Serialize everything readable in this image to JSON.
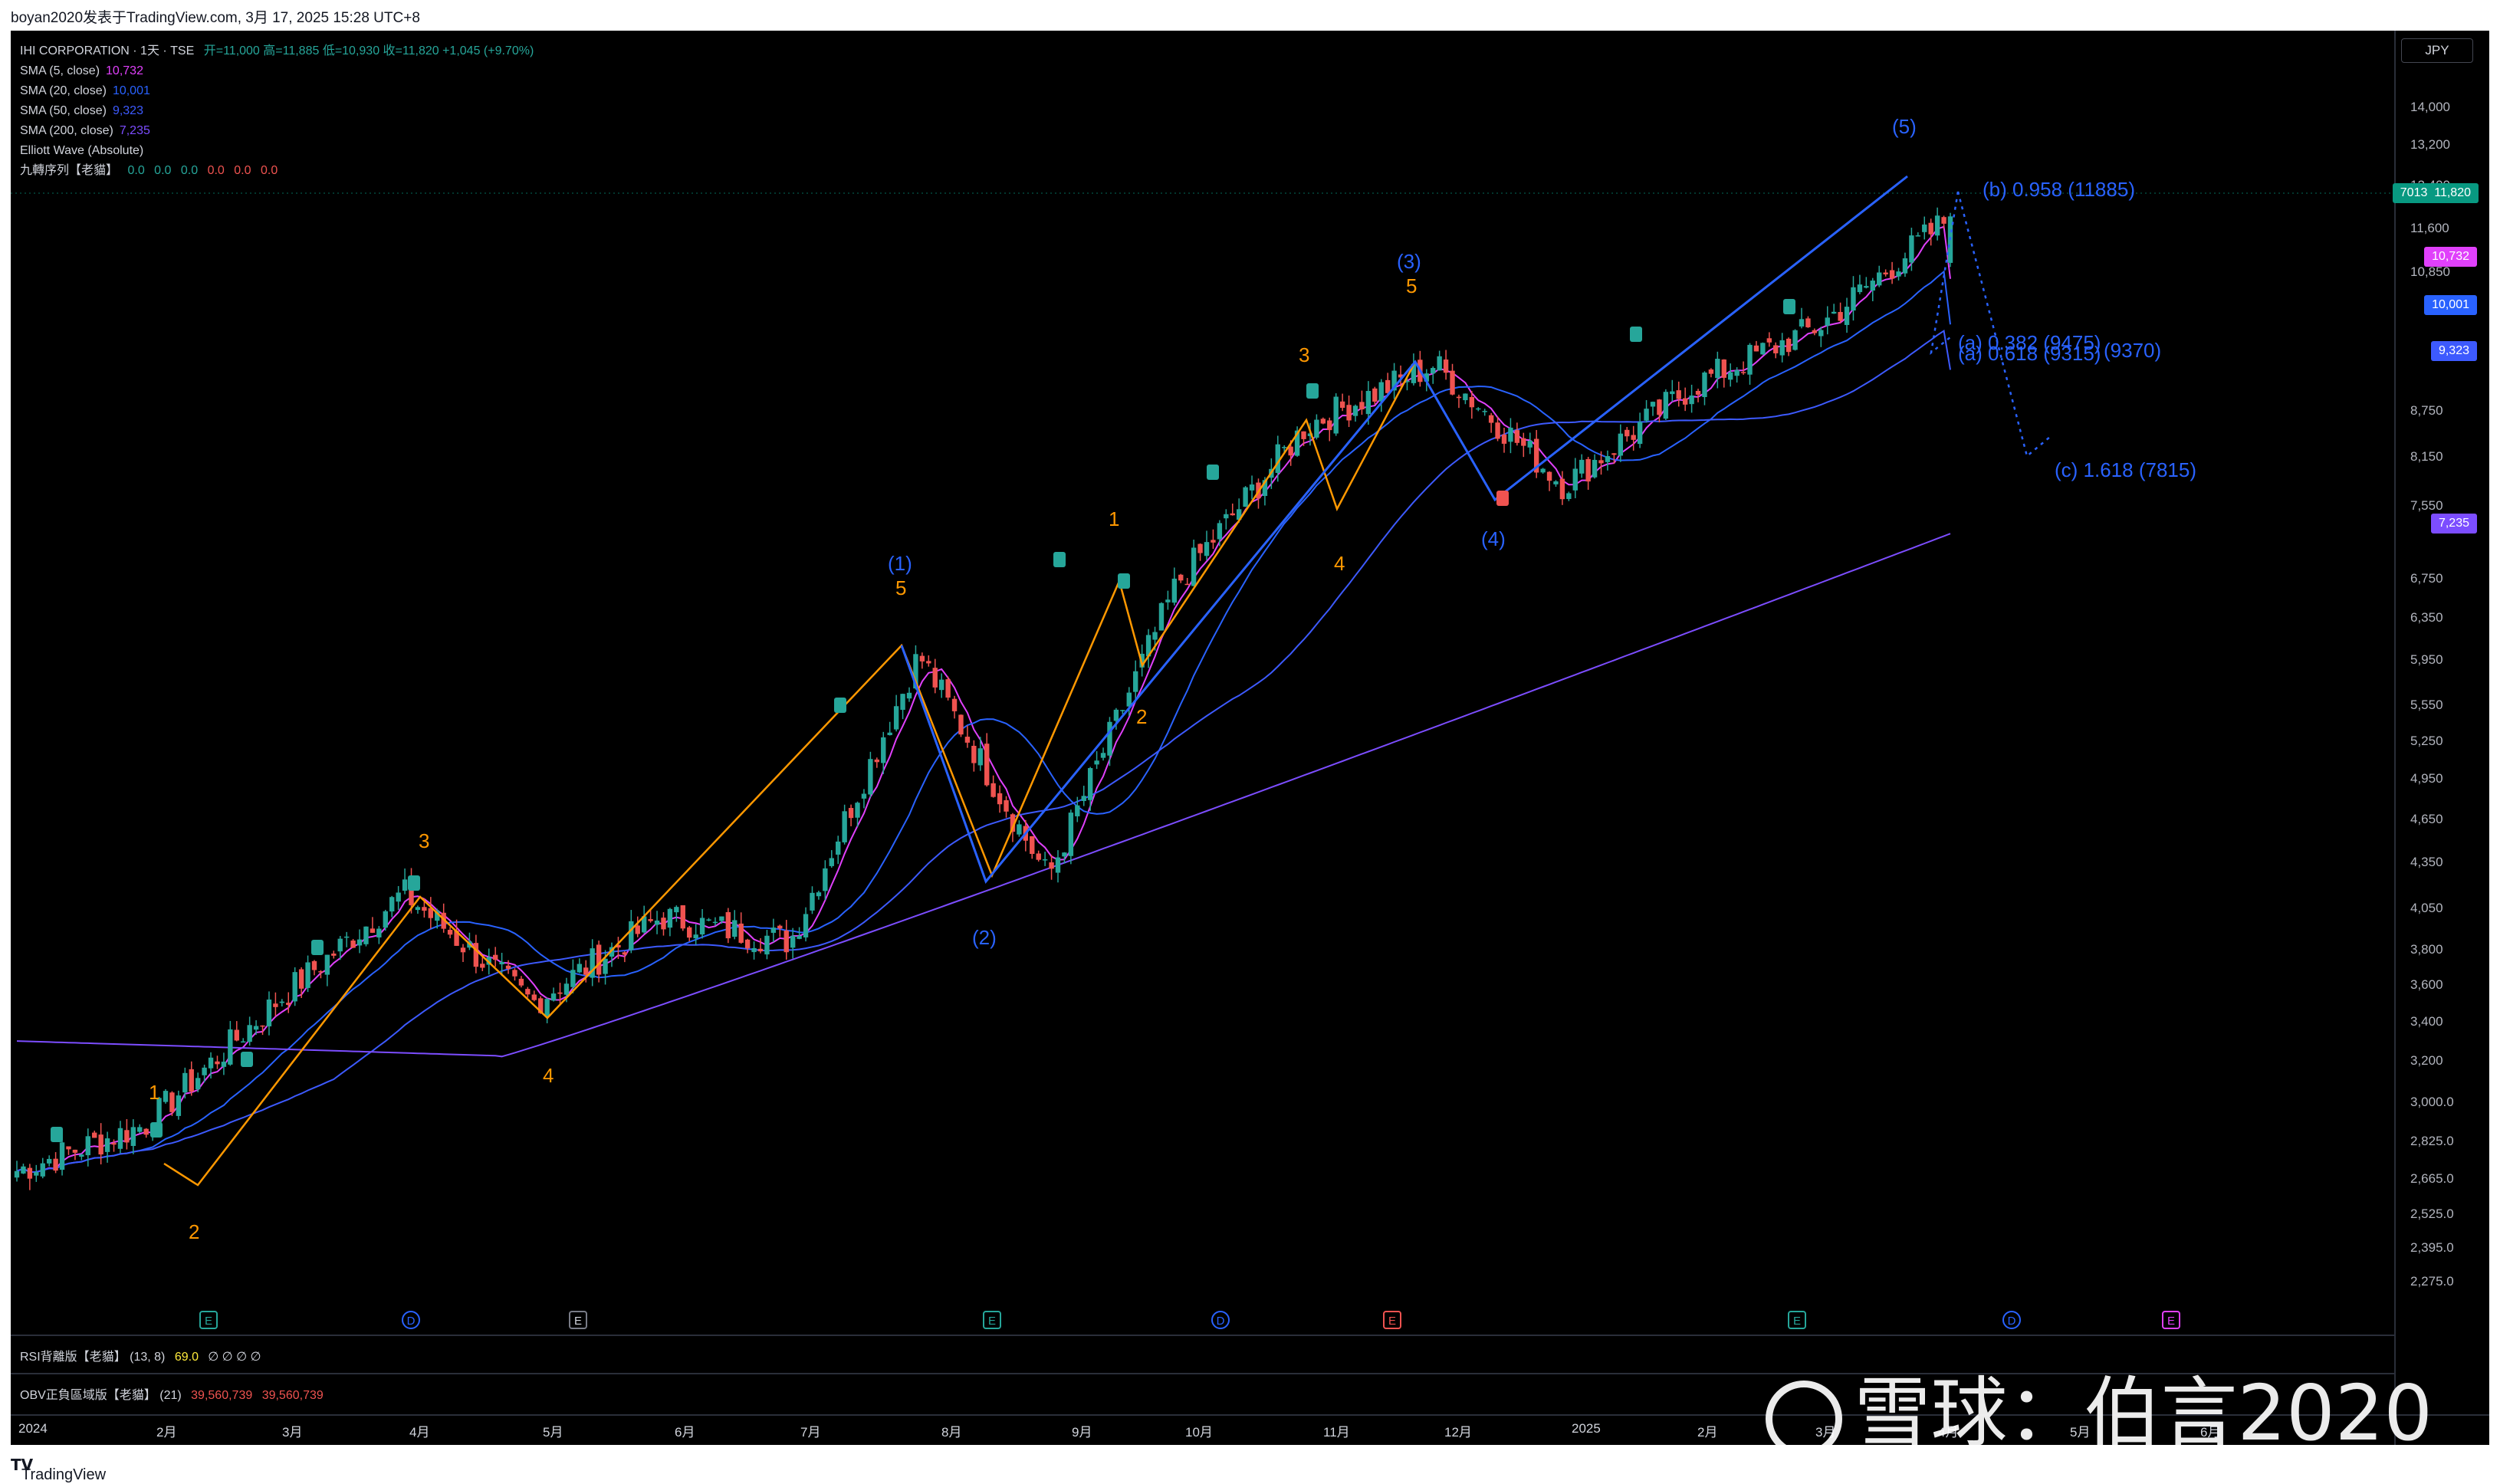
{
  "header": {
    "text": "boyan2020发表于TradingView.com,   3月 17, 2025 15:28 UTC+8"
  },
  "legend": {
    "symbol": "IHI CORPORATION · 1天 · TSE",
    "ohlc": "开=11,000  高=11,885  低=10,930  收=11,820  +1,045 (+9.70%)",
    "rows": [
      {
        "label": "SMA (5, close)",
        "value": "10,732",
        "color": "#e040fb"
      },
      {
        "label": "SMA (20, close)",
        "value": "10,001",
        "color": "#2962ff"
      },
      {
        "label": "SMA (50, close)",
        "value": "9,323",
        "color": "#3d5afe"
      },
      {
        "label": "SMA (200, close)",
        "value": "7,235",
        "color": "#7c4dff"
      },
      {
        "label": "Elliott Wave (Absolute)",
        "value": "",
        "color": "#d1d4dc"
      }
    ],
    "td_label": "九轉序列【老貓】",
    "td_values": [
      "0.0",
      "0.0",
      "0.0",
      "0.0",
      "0.0",
      "0.0"
    ]
  },
  "axis": {
    "currency": "JPY",
    "prices": [
      "14,000",
      "13,200",
      "12,400",
      "11,600",
      "10,850",
      "8,750",
      "8,150",
      "7,550",
      "6,750",
      "6,350",
      "5,950",
      "5,550",
      "5,250",
      "4,950",
      "4,650",
      "4,350",
      "4,050",
      "3,800",
      "3,600",
      "3,400",
      "3,200",
      "3,000.0",
      "2,825.0",
      "2,665.0",
      "2,525.0",
      "2,395.0",
      "2,275.0"
    ],
    "months": [
      "2024",
      "2月",
      "3月",
      "4月",
      "5月",
      "6月",
      "7月",
      "8月",
      "9月",
      "10月",
      "11月",
      "12月",
      "2025",
      "2月",
      "3月",
      "4月",
      "5月",
      "6月"
    ],
    "tags": [
      {
        "text": "7013",
        "value": "11,820",
        "color": "#089981"
      },
      {
        "text": "",
        "value": "10,732",
        "color": "#e040fb"
      },
      {
        "text": "",
        "value": "10,001",
        "color": "#2962ff"
      },
      {
        "text": "",
        "value": "9,323",
        "color": "#3d5afe"
      },
      {
        "text": "",
        "value": "7,235",
        "color": "#7c4dff"
      }
    ]
  },
  "waves": {
    "minor": [
      "1",
      "2",
      "3",
      "4",
      "5",
      "1",
      "2",
      "3",
      "4",
      "5"
    ],
    "major": [
      "(1)",
      "(2)",
      "(3)",
      "(4)",
      "(5)"
    ]
  },
  "fib": {
    "b": "(b) 0.958 (11885)",
    "a1": "(a) 0.382 (9475)",
    "a2": "(a) 0.618 (9315)",
    "a3": "(9370)",
    "c": "(c) 1.618 (7815)"
  },
  "events": [
    "E",
    "D",
    "E",
    "E",
    "D",
    "E",
    "E",
    "D",
    "E"
  ],
  "panes": {
    "rsi": {
      "label": "RSI背離版【老貓】 (13, 8)",
      "value": "69.0",
      "rest": "∅ ∅ ∅ ∅"
    },
    "obv": {
      "label": "OBV正負區域版【老貓】 (21)",
      "v1": "39,560,739",
      "v2": "39,560,739"
    }
  },
  "footer": {
    "brand": "TradingView"
  },
  "watermark": "雪球：伯言2020",
  "chart_data": {
    "type": "candlestick",
    "title": "IHI CORPORATION · 1天 · TSE",
    "ylabel": "JPY",
    "y_scale": "log",
    "ylim": [
      2200,
      14500
    ],
    "x": [
      "2024-01",
      "2024-02",
      "2024-03",
      "2024-04",
      "2024-05",
      "2024-06",
      "2024-07",
      "2024-08",
      "2024-09",
      "2024-10",
      "2024-11",
      "2024-12",
      "2025-01",
      "2025-02",
      "2025-03"
    ],
    "close_path": [
      2700,
      2900,
      3500,
      4150,
      3500,
      4000,
      3850,
      6000,
      4250,
      6700,
      8550,
      9400,
      7800,
      9100,
      10000,
      11820
    ],
    "last": {
      "open": 11000,
      "high": 11885,
      "low": 10930,
      "close": 11820,
      "change": 1045,
      "change_pct": 9.7
    },
    "sma": [
      {
        "name": "SMA (5, close)",
        "last": 10732
      },
      {
        "name": "SMA (20, close)",
        "last": 10001
      },
      {
        "name": "SMA (50, close)",
        "last": 9323
      },
      {
        "name": "SMA (200, close)",
        "last": 7235
      }
    ],
    "elliott_major": [
      {
        "label": "(1)",
        "price": 6000
      },
      {
        "label": "(2)",
        "price": 4250
      },
      {
        "label": "(3)",
        "price": 9400
      },
      {
        "label": "(4)",
        "price": 7700
      },
      {
        "label": "(5)",
        "price": 12000
      }
    ],
    "fib_levels": [
      {
        "label": "(b) 0.958",
        "price": 11885
      },
      {
        "label": "(a) 0.382",
        "price": 9475
      },
      {
        "label": "(a) 0.618",
        "price": 9315
      },
      {
        "label": "(c) 1.618",
        "price": 7815
      }
    ]
  }
}
